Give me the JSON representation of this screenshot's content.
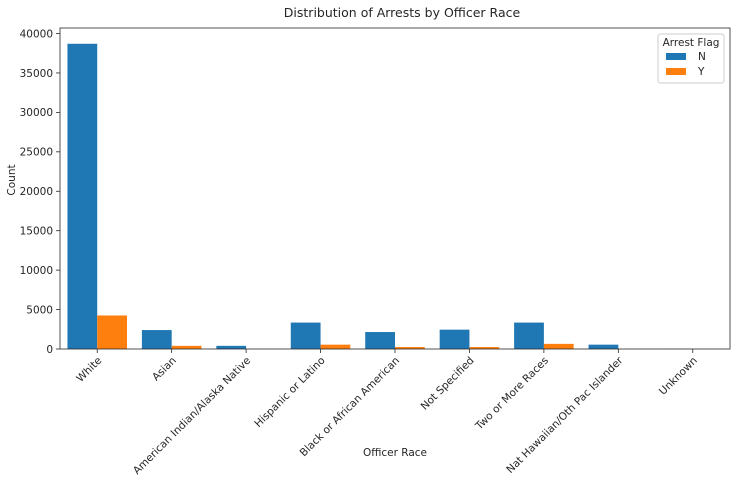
{
  "chart_data": {
    "type": "bar",
    "title": "Distribution of Arrests by Officer Race",
    "xlabel": "Officer Race",
    "ylabel": "Count",
    "ylim": [
      0,
      40700
    ],
    "yticks": [
      0,
      5000,
      10000,
      15000,
      20000,
      25000,
      30000,
      35000,
      40000
    ],
    "categories": [
      "White",
      "Asian",
      "American Indian/Alaska Native",
      "Hispanic or Latino",
      "Black or African American",
      "Not Specified",
      "Two or More Races",
      "Nat Hawaiian/Oth Pac Islander",
      "Unknown"
    ],
    "series": [
      {
        "name": "N",
        "color": "#1f77b4",
        "values": [
          38700,
          2400,
          400,
          3350,
          2150,
          2450,
          3350,
          550,
          15
        ]
      },
      {
        "name": "Y",
        "color": "#ff7f0e",
        "values": [
          4250,
          400,
          0,
          550,
          250,
          250,
          650,
          0,
          0
        ]
      }
    ],
    "legend": {
      "title": "Arrest Flag",
      "placement": "top-right"
    },
    "grid": false
  }
}
